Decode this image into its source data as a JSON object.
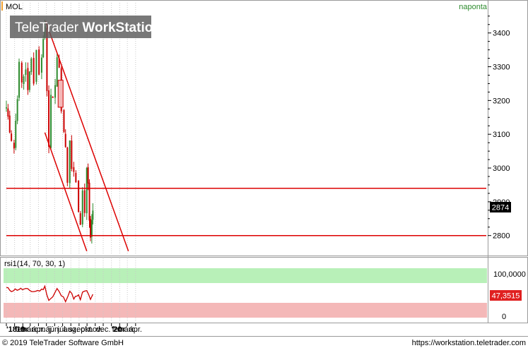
{
  "header": {
    "symbol": "MOL",
    "period": "naponta",
    "watermark_light": "TeleTrader ",
    "watermark_bold": "WorkStation"
  },
  "footer": {
    "copyright": "© 2019 TeleTrader Software GmbH",
    "url": "https://workstation.teletrader.com"
  },
  "colors": {
    "up": "#2e8b2e",
    "down": "#cc0000",
    "line": "#dd0000",
    "badge_price": "#000000",
    "badge_rsi": "#e02020",
    "zone_high": "#b8f0b8",
    "zone_low": "#f4b8b8"
  },
  "chart_data": [
    {
      "type": "candlestick",
      "title": "",
      "last_value_label": "2874",
      "last_value": 2874,
      "y_range": [
        2745,
        3460
      ],
      "y_ticks": [
        2800,
        2900,
        3000,
        3100,
        3200,
        3300,
        3400
      ],
      "y_tick_labels": [
        "2800",
        "2900",
        "3000",
        "3100",
        "3200",
        "3300",
        "3400"
      ],
      "x_tick_labels": [
        "'18",
        "'19",
        "febr.",
        "márc.",
        "ápr.",
        "máj.",
        "jún.",
        "júl.",
        "aug.",
        "szept.",
        "okt.",
        "nov.",
        "dec.",
        "'20",
        "febr.",
        "márc.",
        "ápr."
      ],
      "x_tick_months": [
        "2018-12",
        "2019-01",
        "2019-02",
        "2019-03",
        "2019-04",
        "2019-05",
        "2019-06",
        "2019-07",
        "2019-08",
        "2019-09",
        "2019-10",
        "2019-11",
        "2019-12",
        "2020-01",
        "2020-02",
        "2020-03",
        "2020-04"
      ],
      "anchors": [
        {
          "date": "2018-12-01",
          "close": 3180
        },
        {
          "date": "2018-12-20",
          "close": 3090
        },
        {
          "date": "2018-12-30",
          "close": 3060
        },
        {
          "date": "2019-01-18",
          "close": 3300
        },
        {
          "date": "2019-01-28",
          "close": 3250
        },
        {
          "date": "2019-02-12",
          "close": 3300
        },
        {
          "date": "2019-02-20",
          "close": 3220
        },
        {
          "date": "2019-03-05",
          "close": 3340
        },
        {
          "date": "2019-03-14",
          "close": 3250
        },
        {
          "date": "2019-03-24",
          "close": 3360
        },
        {
          "date": "2019-04-03",
          "close": 3270
        },
        {
          "date": "2019-04-13",
          "close": 3340
        },
        {
          "date": "2019-04-25",
          "close": 3420
        },
        {
          "date": "2019-05-03",
          "close": 3240
        },
        {
          "date": "2019-05-10",
          "close": 3080
        },
        {
          "date": "2019-05-18",
          "close": 3200
        },
        {
          "date": "2019-05-25",
          "close": 3190
        },
        {
          "date": "2019-06-03",
          "close": 3260
        },
        {
          "date": "2019-06-10",
          "close": 3330
        },
        {
          "date": "2019-06-18",
          "close": 3280
        },
        {
          "date": "2019-06-26",
          "close": 3180
        },
        {
          "date": "2019-07-06",
          "close": 3110
        },
        {
          "date": "2019-07-12",
          "close": 3060
        },
        {
          "date": "2019-07-19",
          "close": 2950
        },
        {
          "date": "2019-07-28",
          "close": 3090
        },
        {
          "date": "2019-08-04",
          "close": 3010
        },
        {
          "date": "2019-08-12",
          "close": 2970
        },
        {
          "date": "2019-08-20",
          "close": 2960
        },
        {
          "date": "2019-08-30",
          "close": 2880
        },
        {
          "date": "2019-09-06",
          "close": 2830
        },
        {
          "date": "2019-09-14",
          "close": 2940
        },
        {
          "date": "2019-09-22",
          "close": 2880
        },
        {
          "date": "2019-09-30",
          "close": 2990
        },
        {
          "date": "2019-10-05",
          "close": 2960
        },
        {
          "date": "2019-10-10",
          "close": 2850
        },
        {
          "date": "2019-10-14",
          "close": 2810
        },
        {
          "date": "2019-10-19",
          "close": 2830
        },
        {
          "date": "2019-10-23",
          "close": 2874
        }
      ],
      "highlight_candle": {
        "date": "2019-06-22",
        "open": 3260,
        "close": 3180
      },
      "horizontal_lines": [
        2940,
        2800
      ],
      "trend_lines": [
        {
          "from": {
            "date": "2019-04-28",
            "value": 3435
          },
          "to": {
            "date": "2020-03-05",
            "value": 2754
          }
        },
        {
          "from": {
            "date": "2019-04-25",
            "value": 3105
          },
          "to": {
            "date": "2019-09-30",
            "value": 2754
          }
        }
      ]
    },
    {
      "type": "line",
      "title": "",
      "series_label": "rsi1(14, 70, 30, 1)",
      "last_value_label": "47,3515",
      "last_value": 47.3515,
      "y_range": [
        0,
        100
      ],
      "y_tick_labels": [
        "100,0000",
        "0"
      ],
      "zones": [
        {
          "from": 70,
          "to": 100
        },
        {
          "from": 0,
          "to": 30
        }
      ],
      "anchors": [
        {
          "date": "2018-12-01",
          "value": 60
        },
        {
          "date": "2018-12-20",
          "value": 55
        },
        {
          "date": "2019-01-18",
          "value": 58
        },
        {
          "date": "2019-02-12",
          "value": 57
        },
        {
          "date": "2019-03-14",
          "value": 53
        },
        {
          "date": "2019-04-13",
          "value": 56
        },
        {
          "date": "2019-04-25",
          "value": 62
        },
        {
          "date": "2019-05-10",
          "value": 36
        },
        {
          "date": "2019-05-25",
          "value": 42
        },
        {
          "date": "2019-06-10",
          "value": 58
        },
        {
          "date": "2019-06-26",
          "value": 45
        },
        {
          "date": "2019-07-12",
          "value": 35
        },
        {
          "date": "2019-07-28",
          "value": 54
        },
        {
          "date": "2019-08-12",
          "value": 40
        },
        {
          "date": "2019-08-30",
          "value": 44
        },
        {
          "date": "2019-09-06",
          "value": 37
        },
        {
          "date": "2019-09-14",
          "value": 50
        },
        {
          "date": "2019-09-30",
          "value": 54
        },
        {
          "date": "2019-10-14",
          "value": 38
        },
        {
          "date": "2019-10-23",
          "value": 47.35
        }
      ]
    }
  ]
}
